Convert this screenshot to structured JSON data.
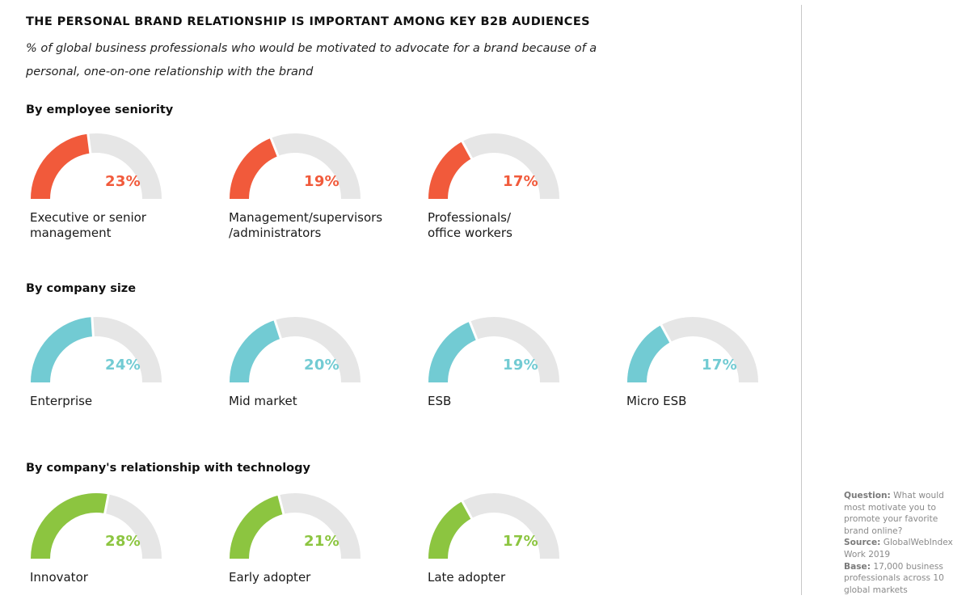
{
  "title": "THE PERSONAL BRAND RELATIONSHIP IS IMPORTANT AMONG KEY B2B AUDIENCES",
  "subtitle": "% of global business professionals who would be motivated to advocate for a brand because of a personal, one-on-one relationship with the brand",
  "colors": {
    "seniority": "#f15a3b",
    "size": "#72cbd3",
    "technology": "#8cc540",
    "track": "#e6e6e6"
  },
  "chart_data": [
    {
      "type": "gauge",
      "title": "By employee seniority",
      "unit": "%",
      "max": 100,
      "categories": [
        "Executive or senior\nmanagement",
        "Management/supervisors\n/administrators",
        "Professionals/\noffice workers"
      ],
      "values": [
        23,
        19,
        17
      ],
      "value_labels": [
        "23%",
        "19%",
        "17%"
      ]
    },
    {
      "type": "gauge",
      "title": "By company size",
      "unit": "%",
      "max": 100,
      "categories": [
        "Enterprise",
        "Mid market",
        "ESB",
        "Micro ESB"
      ],
      "values": [
        24,
        20,
        19,
        17
      ],
      "value_labels": [
        "24%",
        "20%",
        "19%",
        "17%"
      ]
    },
    {
      "type": "gauge",
      "title": "By company's relationship with technology",
      "unit": "%",
      "max": 100,
      "categories": [
        "Innovator",
        "Early adopter",
        "Late adopter"
      ],
      "values": [
        28,
        21,
        17
      ],
      "value_labels": [
        "28%",
        "21%",
        "17%"
      ]
    }
  ],
  "notes": {
    "question_label": "Question:",
    "question_text": "What would most motivate you to promote your favorite brand online?",
    "source_label": "Source:",
    "source_text": "GlobalWebIndex Work 2019",
    "base_label": "Base:",
    "base_text": "17,000 business professionals across 10 global markets"
  }
}
